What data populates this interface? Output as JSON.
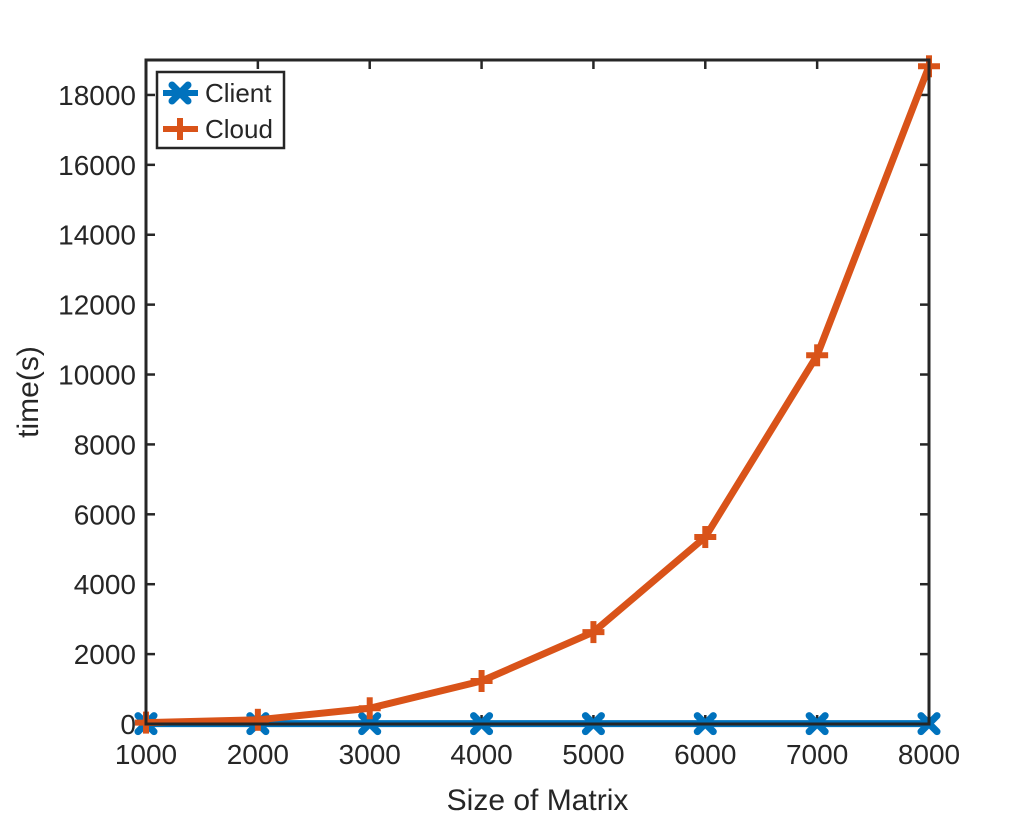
{
  "chart_data": {
    "type": "line",
    "title": "",
    "xlabel": "Size of Matrix",
    "ylabel": "time(s)",
    "x": [
      1000,
      2000,
      3000,
      4000,
      5000,
      6000,
      7000,
      8000
    ],
    "xlim": [
      1000,
      8000
    ],
    "ylim": [
      0,
      19000
    ],
    "xticks": [
      1000,
      2000,
      3000,
      4000,
      5000,
      6000,
      7000,
      8000
    ],
    "yticks": [
      0,
      2000,
      4000,
      6000,
      8000,
      10000,
      12000,
      14000,
      16000,
      18000
    ],
    "grid": false,
    "legend_position": "top-left",
    "series": [
      {
        "name": "Client",
        "color": "#0072BD",
        "marker": "x",
        "values": [
          10,
          10,
          10,
          10,
          10,
          10,
          10,
          10
        ]
      },
      {
        "name": "Cloud",
        "color": "#D95319",
        "marker": "+",
        "values": [
          40,
          120,
          450,
          1230,
          2630,
          5350,
          10550,
          18820
        ]
      }
    ]
  }
}
